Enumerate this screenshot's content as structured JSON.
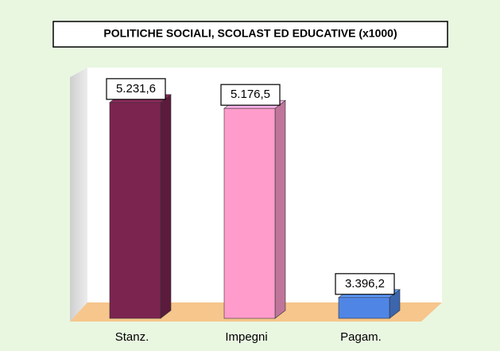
{
  "chart_data": {
    "type": "bar",
    "title": "POLITICHE SOCIALI, SCOLAST ED EDUCATIVE (x1000)",
    "categories": [
      "Stanz.",
      "Impegni",
      "Pagam."
    ],
    "values": [
      5231.6,
      5176.5,
      3396.2
    ],
    "value_labels": [
      "5.231,6",
      "5.176,5",
      "3.396,2"
    ],
    "colors": [
      "#7b2450",
      "#ff9ccc",
      "#4f86e6"
    ],
    "ylim": [
      3200,
      5560
    ]
  }
}
